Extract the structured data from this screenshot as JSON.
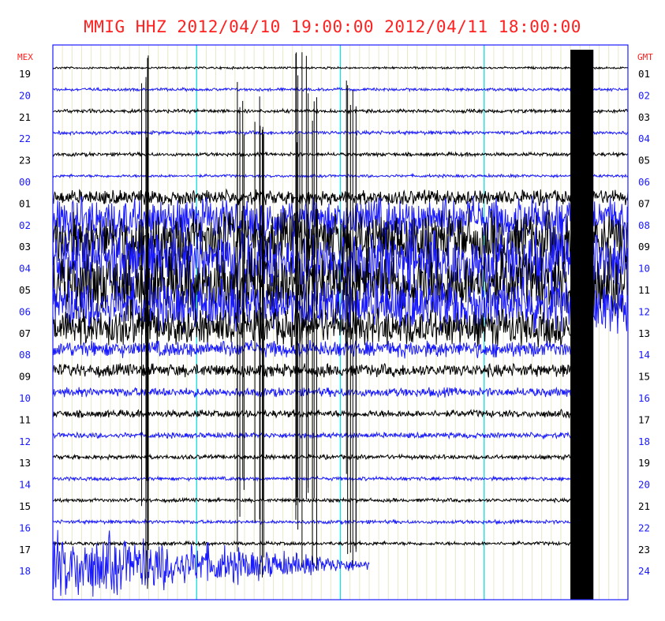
{
  "title": "MMIG HHZ 2012/04/10 19:00:00 2012/04/11 18:00:00",
  "colors": {
    "title": "#ff2020",
    "trace_odd": "#000000",
    "trace_even": "#1a1aff",
    "border": "#1a1aff",
    "minor_grid": "#e8e8c8",
    "major_grid": "#22dddd",
    "label_black": "#000000",
    "label_blue": "#1a1aff",
    "header": "#ff2020"
  },
  "chart_data": {
    "type": "line",
    "subtype": "helicorder",
    "title": "MMIG HHZ 2012/04/10 19:00:00 2012/04/11 18:00:00",
    "left_axis_header": "MEX",
    "right_axis_header": "GMT",
    "left_labels": [
      "19",
      "20",
      "21",
      "22",
      "23",
      "00",
      "01",
      "02",
      "03",
      "04",
      "05",
      "06",
      "07",
      "08",
      "09",
      "10",
      "11",
      "12",
      "13",
      "14",
      "15",
      "16",
      "17",
      "18"
    ],
    "right_labels": [
      "01",
      "02",
      "03",
      "04",
      "05",
      "06",
      "07",
      "08",
      "09",
      "10",
      "11",
      "12",
      "13",
      "14",
      "15",
      "16",
      "17",
      "18",
      "19",
      "20",
      "21",
      "22",
      "23",
      "24"
    ],
    "minutes_per_line": 60,
    "major_grid_minutes": [
      15,
      30,
      45
    ],
    "grid": true,
    "traces": [
      {
        "label": "19",
        "amplitude": 0.06,
        "end_fraction": 1.0
      },
      {
        "label": "20",
        "amplitude": 0.08,
        "end_fraction": 1.0
      },
      {
        "label": "21",
        "amplitude": 0.1,
        "end_fraction": 1.0
      },
      {
        "label": "22",
        "amplitude": 0.1,
        "end_fraction": 1.0
      },
      {
        "label": "23",
        "amplitude": 0.1,
        "end_fraction": 1.0
      },
      {
        "label": "00",
        "amplitude": 0.08,
        "end_fraction": 1.0
      },
      {
        "label": "01",
        "amplitude": 0.4,
        "end_fraction": 1.0
      },
      {
        "label": "02",
        "amplitude": 1.2,
        "end_fraction": 1.0
      },
      {
        "label": "03",
        "amplitude": 1.6,
        "end_fraction": 1.0
      },
      {
        "label": "04",
        "amplitude": 1.8,
        "end_fraction": 1.0
      },
      {
        "label": "05",
        "amplitude": 1.8,
        "end_fraction": 1.0
      },
      {
        "label": "06",
        "amplitude": 1.4,
        "end_fraction": 1.0
      },
      {
        "label": "07",
        "amplitude": 1.0,
        "end_fraction": 0.9
      },
      {
        "label": "08",
        "amplitude": 0.45,
        "end_fraction": 0.9
      },
      {
        "label": "09",
        "amplitude": 0.35,
        "end_fraction": 0.9
      },
      {
        "label": "10",
        "amplitude": 0.25,
        "end_fraction": 0.9
      },
      {
        "label": "11",
        "amplitude": 0.2,
        "end_fraction": 0.9
      },
      {
        "label": "12",
        "amplitude": 0.15,
        "end_fraction": 0.9
      },
      {
        "label": "13",
        "amplitude": 0.12,
        "end_fraction": 0.9
      },
      {
        "label": "14",
        "amplitude": 0.1,
        "end_fraction": 0.9
      },
      {
        "label": "15",
        "amplitude": 0.1,
        "end_fraction": 0.9
      },
      {
        "label": "16",
        "amplitude": 0.1,
        "end_fraction": 0.9
      },
      {
        "label": "17",
        "amplitude": 0.1,
        "end_fraction": 0.9
      },
      {
        "label": "18",
        "amplitude": 1.2,
        "end_fraction": 0.55
      }
    ],
    "saturated_block": {
      "start_fraction": 0.9,
      "end_fraction": 0.94,
      "from_trace": "19",
      "to_trace": "18"
    },
    "burst_columns_fraction": [
      0.16,
      0.33,
      0.36,
      0.43,
      0.45,
      0.52
    ]
  }
}
